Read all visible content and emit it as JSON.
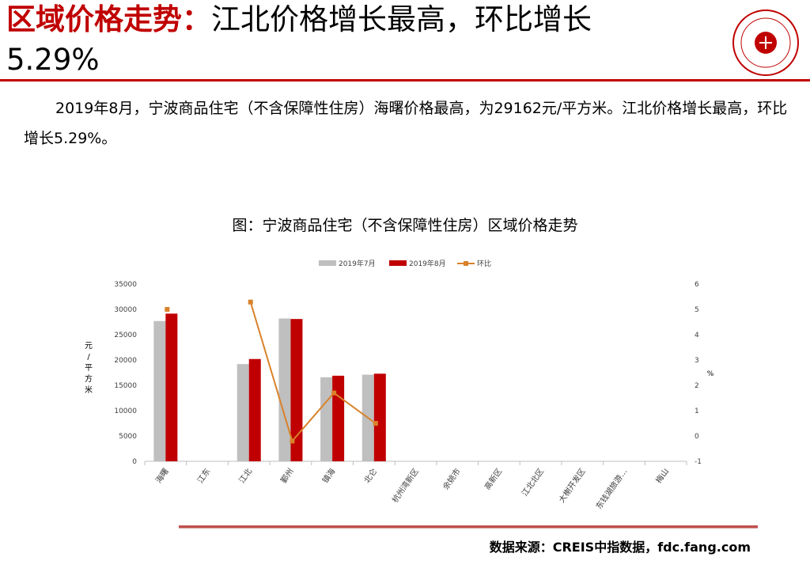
{
  "header": {
    "title_highlight": "区域价格走势：",
    "title_rest": "江北价格增长最高，环比增长",
    "title_line2": "5.29%"
  },
  "body": {
    "paragraph": "2019年8月，宁波商品住宅（不含保障性住房）海曙价格最高，为29162元/平方米。江北价格增长最高，环比增长5.29%。"
  },
  "footer": {
    "source": "数据来源：CREIS中指数据，fdc.fang.com"
  },
  "colors": {
    "brand_red": "#c00000",
    "jul_bar": "#bfbfbf",
    "aug_bar": "#c00000",
    "ratio_line": "#d9822b"
  },
  "chart_data": {
    "type": "bar",
    "title": "图：宁波商品住宅（不含保障性住房）区域价格走势",
    "categories": [
      "海曙",
      "江东",
      "江北",
      "鄞州",
      "镇海",
      "北仑",
      "杭州湾新区",
      "余姚市",
      "高新区",
      "江北北区",
      "大榭开发区",
      "东钱湖旅游…",
      "梅山"
    ],
    "series": [
      {
        "name": "2019年7月",
        "axis": "left",
        "type": "bar",
        "values": [
          27700,
          null,
          19200,
          28200,
          16600,
          17100,
          null,
          null,
          null,
          null,
          null,
          null,
          null
        ]
      },
      {
        "name": "2019年8月",
        "axis": "left",
        "type": "bar",
        "values": [
          29162,
          null,
          20200,
          28100,
          16900,
          17300,
          null,
          null,
          null,
          null,
          null,
          null,
          null
        ]
      },
      {
        "name": "环比",
        "axis": "right",
        "type": "line",
        "values": [
          5.0,
          null,
          5.29,
          -0.2,
          1.7,
          0.5,
          null,
          null,
          null,
          null,
          null,
          null,
          null
        ]
      }
    ],
    "ylabel": "元/平方米",
    "ylim": [
      0,
      35000
    ],
    "yticks": [
      0,
      5000,
      10000,
      15000,
      20000,
      25000,
      30000,
      35000
    ],
    "y2label": "%",
    "y2lim": [
      -1,
      6
    ],
    "y2ticks": [
      -1,
      0,
      1,
      2,
      3,
      4,
      5,
      6
    ],
    "grid": false,
    "legend_position": "top"
  }
}
